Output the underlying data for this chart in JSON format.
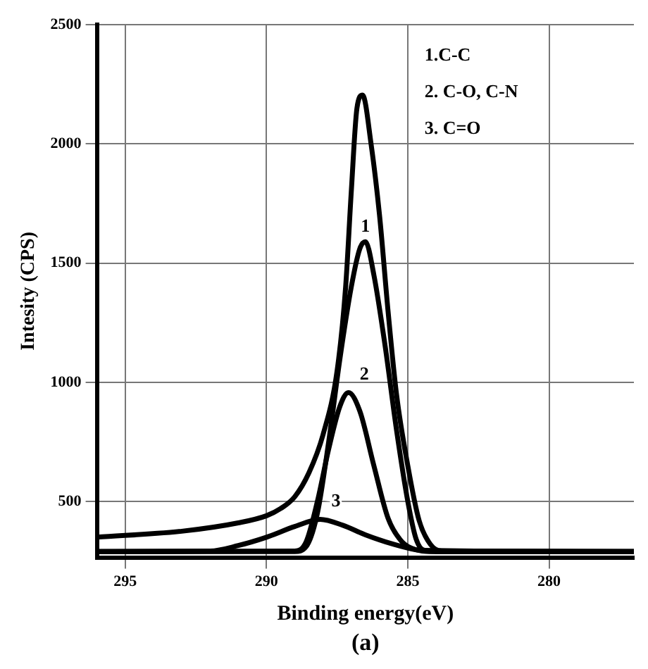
{
  "chart_data": {
    "type": "line",
    "xlabel": "Binding energy(eV)",
    "ylabel": "Intesity (CPS)",
    "xlim": [
      296,
      277
    ],
    "xticks": [
      295,
      290,
      285,
      280
    ],
    "ylim": [
      265,
      2500
    ],
    "yticks": [
      500,
      1000,
      1500,
      2000,
      2500
    ],
    "grid": true,
    "marker": "none",
    "line_style": "solid",
    "series": [
      {
        "color": "#000000",
        "x": [
          296,
          293,
          291,
          290,
          289.5,
          289,
          288.5,
          288,
          287.5,
          287.2,
          287,
          286.8,
          286.6,
          286.3,
          286,
          285.7,
          285.4,
          285,
          284.6,
          284.2,
          283.8,
          277
        ],
        "values": [
          350,
          375,
          410,
          440,
          470,
          520,
          620,
          780,
          1050,
          1400,
          1800,
          2150,
          2205,
          2000,
          1700,
          1300,
          950,
          650,
          420,
          320,
          292,
          290
        ]
      },
      {
        "name": "1",
        "color": "#000000",
        "x": [
          296,
          289,
          288.6,
          288.2,
          287.8,
          287.4,
          287,
          286.7,
          286.5,
          286.2,
          285.8,
          285.4,
          285,
          284.7,
          284.4,
          277
        ],
        "values": [
          290,
          290,
          310,
          450,
          750,
          1100,
          1400,
          1560,
          1590,
          1450,
          1150,
          800,
          500,
          340,
          295,
          290
        ]
      },
      {
        "name": "2",
        "color": "#000000",
        "x": [
          296,
          289,
          288.6,
          288.2,
          287.8,
          287.4,
          287.1,
          286.7,
          286.2,
          285.7,
          285.2,
          284.7,
          284.2,
          277
        ],
        "values": [
          290,
          292,
          330,
          500,
          720,
          900,
          957,
          880,
          650,
          430,
          330,
          297,
          290,
          290
        ]
      },
      {
        "name": "3",
        "color": "#000000",
        "x": [
          296,
          292,
          291,
          290,
          289,
          288.1,
          287.3,
          286.5,
          285.5,
          284.7,
          284,
          277
        ],
        "values": [
          290,
          292,
          315,
          350,
          395,
          425,
          400,
          360,
          320,
          297,
          290,
          290
        ]
      }
    ],
    "annotations": [
      "1.C-C",
      "2. C-O, C-N",
      "3. C=O",
      "(a)"
    ]
  }
}
